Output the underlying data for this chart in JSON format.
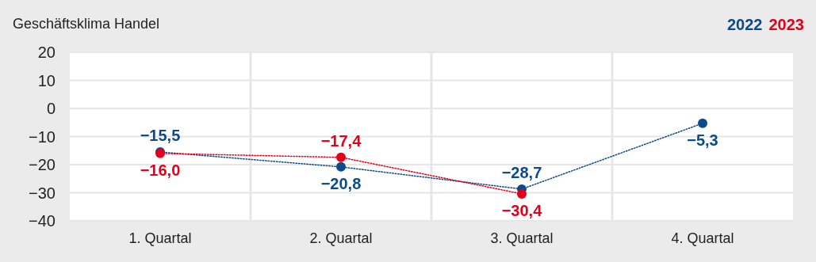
{
  "chart_data": {
    "type": "line",
    "title": "Geschäftsklima Handel",
    "categories": [
      "1. Quartal",
      "2. Quartal",
      "3. Quartal",
      "4. Quartal"
    ],
    "series": [
      {
        "name": "2022",
        "color": "#0b4a8b",
        "values": [
          -15.5,
          -20.8,
          -28.7,
          -5.3
        ],
        "value_labels": [
          "−15,5",
          "−20,8",
          "−28,7",
          "−5,3"
        ]
      },
      {
        "name": "2023",
        "color": "#e2001a",
        "values": [
          -16.0,
          -17.4,
          -30.4,
          null
        ],
        "value_labels": [
          "−16,0",
          "−17,4",
          "−30,4",
          null
        ]
      }
    ],
    "ylim": [
      -40,
      20
    ],
    "yticks": [
      {
        "value": 20,
        "label": "20"
      },
      {
        "value": 10,
        "label": "10"
      },
      {
        "value": 0,
        "label": "0"
      },
      {
        "value": -10,
        "label": "−10"
      },
      {
        "value": -20,
        "label": "−20"
      },
      {
        "value": -30,
        "label": "−30"
      },
      {
        "value": -40,
        "label": "−40"
      }
    ],
    "grid": true,
    "legend": "top right",
    "marker": "circle",
    "line_style": "dotted"
  }
}
